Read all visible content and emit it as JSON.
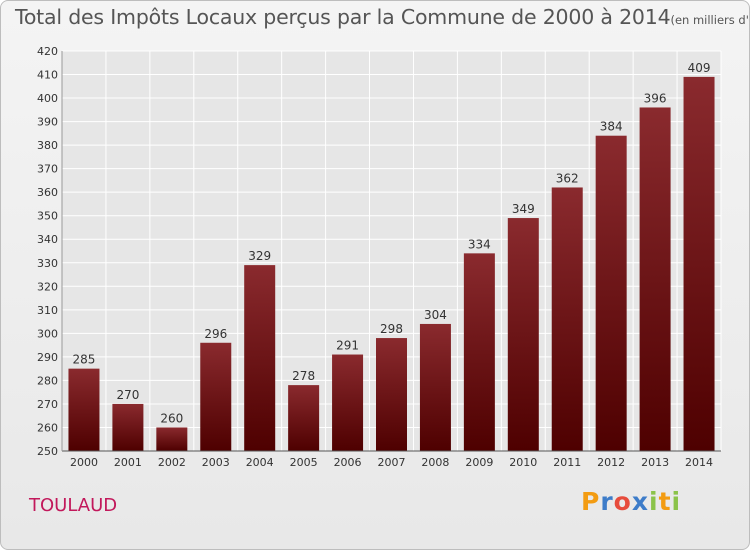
{
  "title": "Total des Impôts Locaux perçus par la Commune de 2000 à 2014",
  "title_unit": "(en milliers d'€)",
  "commune": "TOULAUD",
  "logo": {
    "letters": [
      "P",
      "r",
      "o",
      "x",
      "i",
      "t",
      "i"
    ],
    "colors": [
      "#f39c12",
      "#3d7cc9",
      "#e74c3c",
      "#3d7cc9",
      "#8bc34a",
      "#f39c12",
      "#8bc34a"
    ]
  },
  "colors": {
    "bar_top": "#8a2a2e",
    "bar_bottom": "#4e0000",
    "grid": "#ffffff",
    "axis_text": "#333333",
    "commune": "#c2185b"
  },
  "chart_data": {
    "type": "bar",
    "categories": [
      "2000",
      "2001",
      "2002",
      "2003",
      "2004",
      "2005",
      "2006",
      "2007",
      "2008",
      "2009",
      "2010",
      "2011",
      "2012",
      "2013",
      "2014"
    ],
    "values": [
      285,
      270,
      260,
      296,
      329,
      278,
      291,
      298,
      304,
      334,
      349,
      362,
      384,
      396,
      409
    ],
    "data_labels": [
      "285",
      "270",
      "260",
      "296",
      "329",
      "278",
      "291",
      "298",
      "304",
      "334",
      "349",
      "362",
      "384",
      "396",
      "409"
    ],
    "ylim": [
      250,
      420
    ],
    "ytick_step": 10,
    "yticks": [
      "250",
      "260",
      "270",
      "280",
      "290",
      "300",
      "310",
      "320",
      "330",
      "340",
      "350",
      "360",
      "370",
      "380",
      "390",
      "400",
      "410",
      "420"
    ],
    "grid": true,
    "legend": "none"
  }
}
